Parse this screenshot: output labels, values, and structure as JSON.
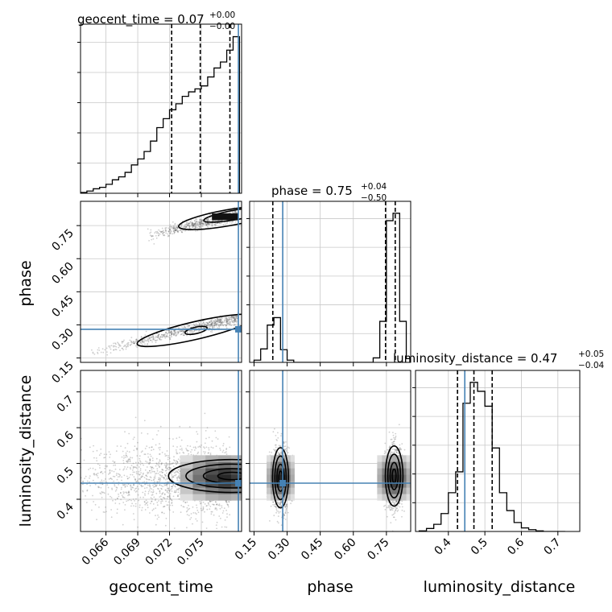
{
  "chart_data": {
    "type": "corner",
    "colors": {
      "truth": "#4682b4",
      "hist": "#000000",
      "grid": "#c8c8c8",
      "scatter": "#555555"
    },
    "parameters": [
      {
        "name": "geocent_time",
        "axis_label": "geocent_time",
        "title_prefix": "geocent_time = 0.07",
        "title_plus": "+0.00",
        "title_minus": "−0.00",
        "range": [
          0.0636,
          0.0788
        ],
        "ticks": [
          0.066,
          0.069,
          0.072,
          0.075
        ],
        "tick_labels": [
          "0.066",
          "0.069",
          "0.072",
          "0.075"
        ],
        "quantiles": [
          0.0722,
          0.0749,
          0.0777
        ],
        "truth": 0.0785,
        "hist_edges_start": 0.0636,
        "hist_bin_width": 0.0006,
        "hist_counts": [
          0.5,
          1.5,
          3,
          4,
          6,
          9,
          11,
          14,
          19,
          23,
          28,
          35,
          44,
          50,
          56,
          60,
          65,
          68,
          70,
          72,
          78,
          84,
          88,
          96,
          105
        ]
      },
      {
        "name": "phase",
        "axis_label": "phase",
        "title_prefix": "phase = 0.75",
        "title_plus": "+0.04",
        "title_minus": "−0.50",
        "range": [
          0.13,
          0.86
        ],
        "ticks": [
          0.15,
          0.3,
          0.45,
          0.6,
          0.75
        ],
        "tick_labels": [
          "0.15",
          "0.30",
          "0.45",
          "0.60",
          "0.75"
        ],
        "quantiles": [
          0.235,
          0.746,
          0.79
        ],
        "truth": 0.28,
        "hist_edges_start": 0.15,
        "hist_bin_width": 0.03,
        "hist_counts": [
          3,
          18,
          50,
          60,
          17,
          3,
          0,
          0,
          0,
          0,
          0,
          0,
          0,
          0,
          0,
          0,
          0,
          0,
          6,
          55,
          190,
          200,
          55,
          5
        ]
      },
      {
        "name": "luminosity_distance",
        "axis_label": "luminosity_distance",
        "title_prefix": "luminosity_distance = 0.47",
        "title_plus": "+0.05",
        "title_minus": "−0.04",
        "range": [
          0.31,
          0.76
        ],
        "ticks": [
          0.4,
          0.5,
          0.6,
          0.7
        ],
        "tick_labels": [
          "0.4",
          "0.5",
          "0.6",
          "0.7"
        ],
        "quantiles": [
          0.425,
          0.47,
          0.52
        ],
        "truth": 0.445,
        "hist_edges_start": 0.32,
        "hist_bin_width": 0.02,
        "hist_counts": [
          1,
          5,
          12,
          30,
          65,
          100,
          215,
          250,
          235,
          210,
          140,
          65,
          35,
          15,
          6,
          3,
          1,
          0,
          0,
          0
        ]
      }
    ],
    "modes": {
      "geocent_time_phase": [
        {
          "x": [
            0.0698,
            0.0785
          ],
          "y": [
            0.7,
            0.8
          ],
          "core": [
            0.0778,
            0.79
          ]
        },
        {
          "x": [
            0.0642,
            0.0785
          ],
          "y": [
            0.17,
            0.33
          ],
          "core": [
            0.074,
            0.28
          ]
        }
      ],
      "geocent_time_luminosity_distance": [
        {
          "center": [
            0.0778,
            0.455
          ],
          "spread": [
            0.0075,
            0.045
          ]
        }
      ],
      "phase_luminosity_distance": [
        {
          "center": [
            0.27,
            0.46
          ],
          "spread": [
            0.04,
            0.045
          ]
        },
        {
          "center": [
            0.785,
            0.46
          ],
          "spread": [
            0.035,
            0.045
          ]
        }
      ]
    }
  }
}
